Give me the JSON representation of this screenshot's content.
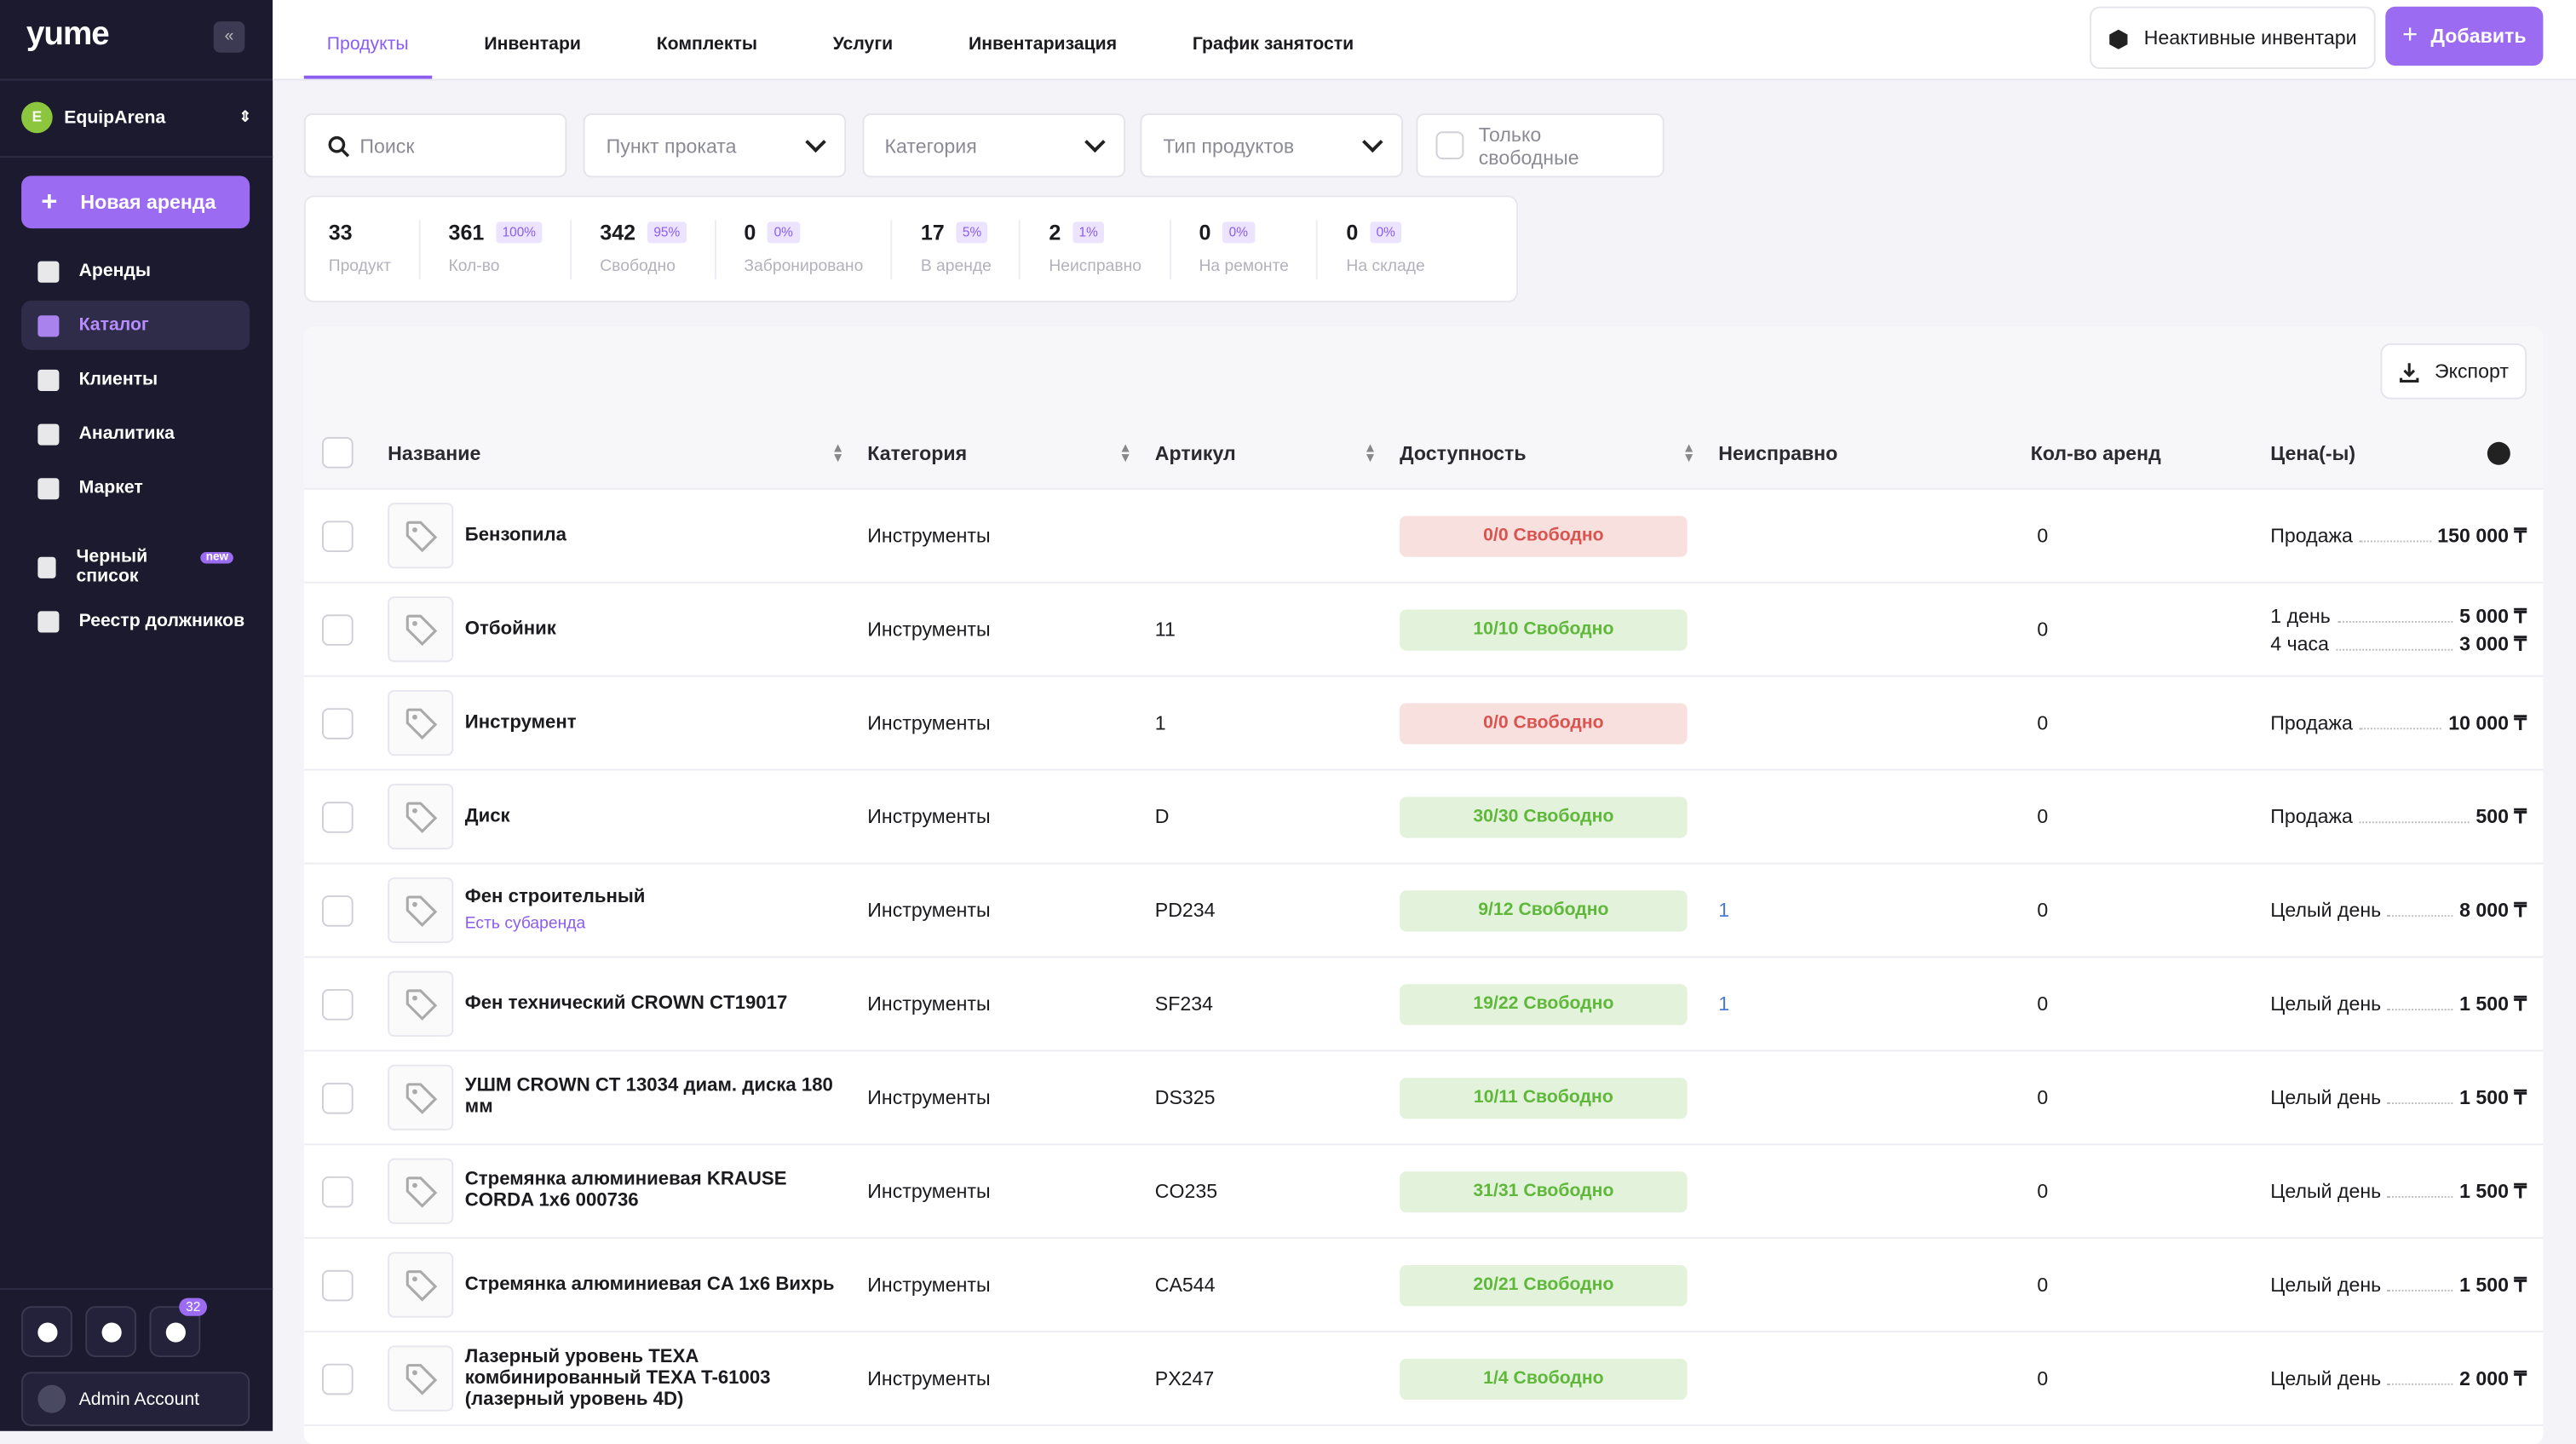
{
  "sidebar": {
    "logo": "yume",
    "workspace_initial": "E",
    "workspace": "EquipArena",
    "new_rental": "Новая аренда",
    "nav": [
      {
        "label": "Аренды"
      },
      {
        "label": "Каталог",
        "active": true
      },
      {
        "label": "Клиенты"
      },
      {
        "label": "Аналитика"
      },
      {
        "label": "Маркет"
      },
      {
        "label": "Черный список",
        "badge": "new"
      },
      {
        "label": "Реестр должников"
      }
    ],
    "notifications": "32",
    "user": "Admin Account"
  },
  "tabs": [
    "Продукты",
    "Инвентари",
    "Комплекты",
    "Услуги",
    "Инвентаризация",
    "График занятости"
  ],
  "active_tab": 0,
  "actions": {
    "inactive": "Неактивные инвентари",
    "add": "Добавить"
  },
  "filters": {
    "search": "Поиск",
    "selects": [
      "Пункт проката",
      "Категория",
      "Тип продуктов"
    ],
    "only_free": "Только свободные"
  },
  "stats": [
    {
      "value": 33,
      "label": "Продукт"
    },
    {
      "value": 361,
      "percent": "100%",
      "label": "Кол-во"
    },
    {
      "value": 342,
      "percent": "95%",
      "label": "Свободно"
    },
    {
      "value": 0,
      "percent": "0%",
      "label": "Забронировано"
    },
    {
      "value": 17,
      "percent": "5%",
      "label": "В аренде"
    },
    {
      "value": 2,
      "percent": "1%",
      "label": "Неисправно"
    },
    {
      "value": 0,
      "percent": "0%",
      "label": "На ремонте"
    },
    {
      "value": 0,
      "percent": "0%",
      "label": "На складе"
    }
  ],
  "export": "Экспорт",
  "table": {
    "columns": [
      "Название",
      "Категория",
      "Артикул",
      "Доступность",
      "Неисправно",
      "Кол-во аренд",
      "Цена(-ы)"
    ],
    "rows": [
      {
        "name": "Бензопила",
        "category": "Инструменты",
        "availability": "0/0 Свободно",
        "color": "#d9534f",
        "rentals": 0,
        "prices": [
          {
            "label": "Продажа",
            "amount": "150 000 ₸"
          }
        ]
      },
      {
        "name": "Отбойник",
        "category": "Инструменты",
        "sku": "11",
        "availability": "10/10 Свободно",
        "color": "#5fb83a",
        "rentals": 0,
        "prices": [
          {
            "label": "1 день",
            "amount": "5 000 ₸"
          },
          {
            "label": "4 часа",
            "amount": "3 000 ₸"
          }
        ]
      },
      {
        "name": "Инструмент",
        "category": "Инструменты",
        "sku": "1",
        "availability": "0/0 Свободно",
        "color": "#d9534f",
        "rentals": 0,
        "prices": [
          {
            "label": "Продажа",
            "amount": "10 000 ₸"
          }
        ]
      },
      {
        "name": "Диск",
        "category": "Инструменты",
        "sku": "D",
        "availability": "30/30 Свободно",
        "color": "#5fb83a",
        "rentals": 0,
        "prices": [
          {
            "label": "Продажа",
            "amount": "500 ₸"
          }
        ]
      },
      {
        "name": "Фен строительный",
        "note": "Есть субаренда",
        "category": "Инструменты",
        "sku": "PD234",
        "availability": "9/12 Свободно",
        "color": "#5fb83a",
        "faulty": 1,
        "rentals": 0,
        "prices": [
          {
            "label": "Целый день",
            "amount": "8 000 ₸"
          }
        ]
      },
      {
        "name": "Фен технический CROWN CT19017",
        "category": "Инструменты",
        "sku": "SF234",
        "availability": "19/22 Свободно",
        "color": "#5fb83a",
        "faulty": 1,
        "rentals": 0,
        "prices": [
          {
            "label": "Целый день",
            "amount": "1 500 ₸"
          }
        ]
      },
      {
        "name": "УШМ CROWN CT 13034 диам. диска 180 мм",
        "category": "Инструменты",
        "sku": "DS325",
        "availability": "10/11 Свободно",
        "color": "#5fb83a",
        "rentals": 0,
        "prices": [
          {
            "label": "Целый день",
            "amount": "1 500 ₸"
          }
        ]
      },
      {
        "name": "Стремянка алюминиевая KRAUSE CORDA 1x6 000736",
        "category": "Инструменты",
        "sku": "CO235",
        "availability": "31/31 Свободно",
        "color": "#5fb83a",
        "rentals": 0,
        "prices": [
          {
            "label": "Целый день",
            "amount": "1 500 ₸"
          }
        ]
      },
      {
        "name": "Стремянка алюминиевая CA 1x6 Вихрь",
        "category": "Инструменты",
        "sku": "CA544",
        "availability": "20/21 Свободно",
        "color": "#5fb83a",
        "rentals": 0,
        "prices": [
          {
            "label": "Целый день",
            "amount": "1 500 ₸"
          }
        ]
      },
      {
        "name": "Лазерный уровень TEXA комбинированный TEXA T-61003 (лазерный уровень 4D)",
        "category": "Инструменты",
        "sku": "PX247",
        "availability": "1/4 Свободно",
        "color": "#5fb83a",
        "rentals": 0,
        "prices": [
          {
            "label": "Целый день",
            "amount": "2 000 ₸"
          }
        ]
      }
    ]
  }
}
